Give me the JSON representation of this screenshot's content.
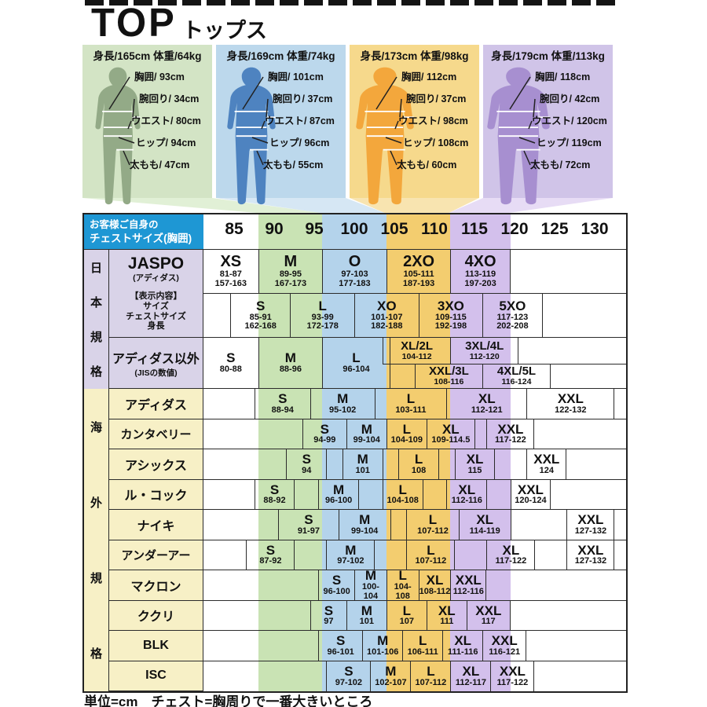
{
  "page": {
    "title": "TOP",
    "subtitle": "トップス",
    "footer": "単位=cm　チェスト=胸周りで一番大きいところ"
  },
  "colors": {
    "header_blue": "#1e97d4",
    "japan_label_bg": "#d9d3e8",
    "overseas_label_bg": "#f7f0c6",
    "stripe_green": "#c9e3b4",
    "stripe_blue": "#b4d3eb",
    "stripe_orange": "#f3cd6f",
    "stripe_purple": "#d3c0ec",
    "panel_green": "#d3e4c5",
    "panel_blue": "#bcd8ec",
    "panel_orange": "#f6d98c",
    "panel_purple": "#d0c4e8",
    "figure_green": "#93aa87",
    "figure_blue": "#4e83c0",
    "figure_orange": "#f3a73c",
    "figure_purple": "#a78fd0"
  },
  "figures": [
    {
      "header": "身長/165cm 体重/64kg",
      "color": "green",
      "measurements": [
        {
          "text": "胸囲/ 93cm"
        },
        {
          "text": "腕回り/ 34cm"
        },
        {
          "text": "ウエスト/ 80cm"
        },
        {
          "text": "ヒップ/ 94cm"
        },
        {
          "text": "太もも/ 47cm"
        }
      ]
    },
    {
      "header": "身長/169cm 体重/74kg",
      "color": "blue",
      "measurements": [
        {
          "text": "胸囲/ 101cm"
        },
        {
          "text": "腕回り/ 37cm"
        },
        {
          "text": "ウエスト/ 87cm"
        },
        {
          "text": "ヒップ/ 96cm"
        },
        {
          "text": "太もも/ 55cm"
        }
      ]
    },
    {
      "header": "身長/173cm 体重/98kg",
      "color": "orange",
      "measurements": [
        {
          "text": "胸囲/ 112cm"
        },
        {
          "text": "腕回り/ 37cm"
        },
        {
          "text": "ウエスト/ 98cm"
        },
        {
          "text": "ヒップ/ 108cm"
        },
        {
          "text": "太もも/ 60cm"
        }
      ]
    },
    {
      "header": "身長/179cm 体重/113kg",
      "color": "purple",
      "measurements": [
        {
          "text": "胸囲/ 118cm"
        },
        {
          "text": "腕回り/ 42cm"
        },
        {
          "text": "ウエスト/ 120cm"
        },
        {
          "text": "ヒップ/ 119cm"
        },
        {
          "text": "太もも/ 72cm"
        }
      ]
    }
  ],
  "table": {
    "corner": {
      "line1": "お客様ご自身の",
      "line2": "チェストサイズ(胸囲)"
    },
    "chest_sizes": [
      85,
      90,
      95,
      100,
      105,
      110,
      115,
      120,
      125,
      130
    ],
    "japan": {
      "label": "日本規格",
      "jaspo": {
        "brand": "JASPO",
        "brand_sub": "(アディダス)",
        "cells": [
          {
            "size": "XS",
            "chest": "81-87",
            "body": "157-163"
          },
          {
            "size": "M",
            "chest": "89-95",
            "body": "167-173"
          },
          {
            "size": "O",
            "chest": "97-103",
            "body": "177-183"
          },
          {
            "size": "2XO",
            "chest": "105-111",
            "body": "187-193"
          },
          {
            "size": "4XO",
            "chest": "113-119",
            "body": "197-203"
          }
        ]
      },
      "hyoji": {
        "legend": [
          "【表示内容】",
          "サイズ",
          "チェストサイズ",
          "身長"
        ],
        "cells": [
          {
            "size": "S",
            "chest": "85-91",
            "body": "162-168"
          },
          {
            "size": "L",
            "chest": "93-99",
            "body": "172-178"
          },
          {
            "size": "XO",
            "chest": "101-107",
            "body": "182-188"
          },
          {
            "size": "3XO",
            "chest": "109-115",
            "body": "192-198"
          },
          {
            "size": "5XO",
            "chest": "117-123",
            "body": "202-208"
          }
        ]
      },
      "igai": {
        "brand": "アディダス以外",
        "brand_sub": "(JISの数値)",
        "full": [
          {
            "size": "S",
            "chest": "80-88"
          },
          {
            "size": "M",
            "chest": "88-96"
          },
          {
            "size": "L",
            "chest": "96-104"
          }
        ],
        "upper": [
          {
            "size": "XL/2L",
            "chest": "104-112"
          },
          {
            "size": "3XL/4L",
            "chest": "112-120"
          }
        ],
        "lower": [
          {
            "size": "XXL/3L",
            "chest": "108-116"
          },
          {
            "size": "4XL/5L",
            "chest": "116-124"
          }
        ]
      }
    },
    "overseas": {
      "label": "海外規格",
      "brands": [
        {
          "name": "アディダス",
          "cells": [
            {
              "size": "S",
              "chest": "88-94"
            },
            {
              "size": "M",
              "chest": "95-102"
            },
            {
              "size": "L",
              "chest": "103-111"
            },
            {
              "size": "XL",
              "chest": "112-121"
            },
            {
              "size": "XXL",
              "chest": "122-132"
            }
          ]
        },
        {
          "name": "カンタベリー",
          "cells": [
            {
              "size": "S",
              "chest": "94-99"
            },
            {
              "size": "M",
              "chest": "99-104"
            },
            {
              "size": "L",
              "chest": "104-109"
            },
            {
              "size": "XL",
              "chest": "109-114.5"
            },
            {
              "size": "XXL",
              "chest": "117-122"
            }
          ]
        },
        {
          "name": "アシックス",
          "cells": [
            {
              "size": "S",
              "chest": "94"
            },
            {
              "size": "M",
              "chest": "101"
            },
            {
              "size": "L",
              "chest": "108"
            },
            {
              "size": "XL",
              "chest": "115"
            },
            {
              "size": "XXL",
              "chest": "124"
            }
          ]
        },
        {
          "name": "ル・コック",
          "cells": [
            {
              "size": "S",
              "chest": "88-92"
            },
            {
              "size": "M",
              "chest": "96-100"
            },
            {
              "size": "L",
              "chest": "104-108"
            },
            {
              "size": "XL",
              "chest": "112-116"
            },
            {
              "size": "XXL",
              "chest": "120-124"
            }
          ]
        },
        {
          "name": "ナイキ",
          "cells": [
            {
              "size": "S",
              "chest": "91-97"
            },
            {
              "size": "M",
              "chest": "99-104"
            },
            {
              "size": "L",
              "chest": "107-112"
            },
            {
              "size": "XL",
              "chest": "114-119"
            },
            {
              "size": "XXL",
              "chest": "127-132"
            }
          ]
        },
        {
          "name": "アンダーアー",
          "cells": [
            {
              "size": "S",
              "chest": "87-92"
            },
            {
              "size": "M",
              "chest": "97-102"
            },
            {
              "size": "L",
              "chest": "107-112"
            },
            {
              "size": "XL",
              "chest": "117-122"
            },
            {
              "size": "XXL",
              "chest": "127-132"
            }
          ]
        },
        {
          "name": "マクロン",
          "cells": [
            {
              "size": "S",
              "chest": "96-100"
            },
            {
              "size": "M",
              "chest": "100-104"
            },
            {
              "size": "L",
              "chest": "104-108"
            },
            {
              "size": "XL",
              "chest": "108-112"
            },
            {
              "size": "XXL",
              "chest": "112-116"
            }
          ]
        },
        {
          "name": "ククリ",
          "cells": [
            {
              "size": "S",
              "chest": "97"
            },
            {
              "size": "M",
              "chest": "101"
            },
            {
              "size": "L",
              "chest": "107"
            },
            {
              "size": "XL",
              "chest": "111"
            },
            {
              "size": "XXL",
              "chest": "117"
            }
          ]
        },
        {
          "name": "BLK",
          "cells": [
            {
              "size": "S",
              "chest": "96-101"
            },
            {
              "size": "M",
              "chest": "101-106"
            },
            {
              "size": "L",
              "chest": "106-111"
            },
            {
              "size": "XL",
              "chest": "111-116"
            },
            {
              "size": "XXL",
              "chest": "116-121"
            }
          ]
        },
        {
          "name": "ISC",
          "cells": [
            {
              "size": "S",
              "chest": "97-102"
            },
            {
              "size": "M",
              "chest": "102-107"
            },
            {
              "size": "L",
              "chest": "107-112"
            },
            {
              "size": "XL",
              "chest": "112-117"
            },
            {
              "size": "XXL",
              "chest": "117-122"
            }
          ]
        }
      ]
    }
  }
}
